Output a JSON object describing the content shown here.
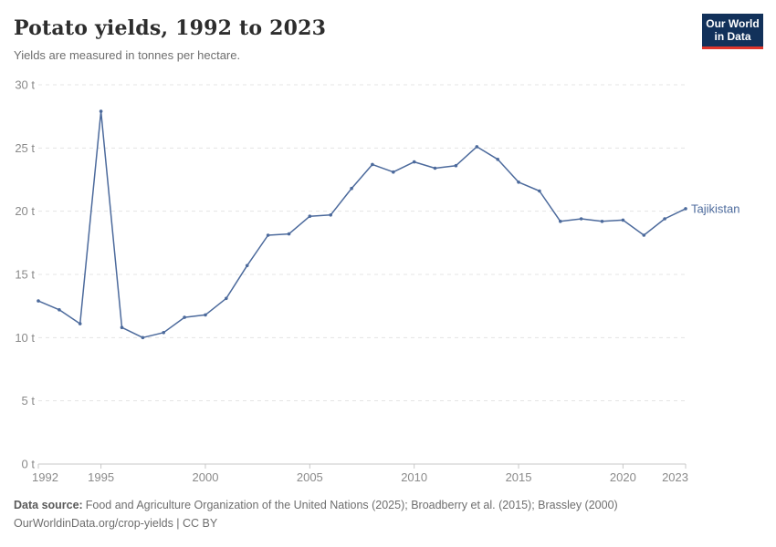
{
  "header": {
    "title": "Potato yields, 1992 to 2023",
    "subtitle": "Yields are measured in tonnes per hectare.",
    "logo": {
      "line1": "Our World",
      "line2": "in Data"
    }
  },
  "chart_data": {
    "type": "line",
    "title": "Potato yields, 1992 to 2023",
    "ylabel": "tonnes per hectare",
    "xlabel": "",
    "xlim": [
      1992,
      2023
    ],
    "ylim": [
      0,
      30
    ],
    "x_ticks": [
      1992,
      1995,
      2000,
      2005,
      2010,
      2015,
      2020,
      2023
    ],
    "y_ticks": [
      0,
      5,
      10,
      15,
      20,
      25,
      30
    ],
    "y_tick_suffix": " t",
    "grid": "horizontal-dashed",
    "legend": "end-of-line-label",
    "x": [
      1992,
      1993,
      1994,
      1995,
      1996,
      1997,
      1998,
      1999,
      2000,
      2001,
      2002,
      2003,
      2004,
      2005,
      2006,
      2007,
      2008,
      2009,
      2010,
      2011,
      2012,
      2013,
      2014,
      2015,
      2016,
      2017,
      2018,
      2019,
      2020,
      2021,
      2022,
      2023
    ],
    "series": [
      {
        "name": "Tajikistan",
        "color": "#4c6a9c",
        "values": [
          12.9,
          12.2,
          11.1,
          27.9,
          10.8,
          10.0,
          10.4,
          11.6,
          11.8,
          13.1,
          15.7,
          18.1,
          18.2,
          19.6,
          19.7,
          21.8,
          23.7,
          23.1,
          23.9,
          23.4,
          23.6,
          25.1,
          24.1,
          22.3,
          21.6,
          19.2,
          19.4,
          19.2,
          19.3,
          18.1,
          19.4,
          20.2
        ]
      }
    ]
  },
  "footer": {
    "source_label": "Data source:",
    "source_text": "Food and Agriculture Organization of the United Nations (2025); Broadberry et al. (2015); Brassley (2000)",
    "note_text": "OurWorldinData.org/crop-yields | CC BY"
  },
  "colors": {
    "series_blue": "#4c6a9c",
    "gridline": "#e4e4e4",
    "axis_line": "#c8c8c8",
    "axis_text": "#8a8a8a",
    "logo_navy": "#12315a",
    "logo_red": "#e0362c"
  }
}
